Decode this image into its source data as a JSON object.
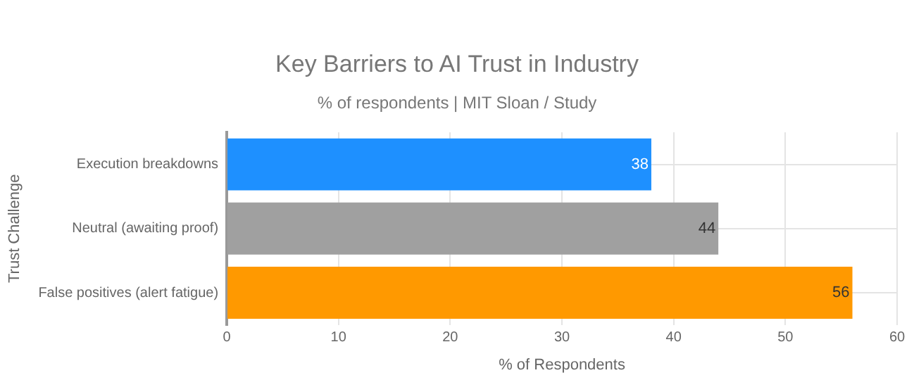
{
  "chart_data": {
    "type": "bar",
    "orientation": "horizontal",
    "title": "Key Barriers to AI Trust in Industry",
    "subtitle": "% of respondents | MIT Sloan / Study",
    "categories": [
      "Execution breakdowns",
      "Neutral (awaiting proof)",
      "False positives (alert fatigue)"
    ],
    "values": [
      38,
      44,
      56
    ],
    "colors": [
      "#1e90ff",
      "#a0a0a0",
      "#ff9900"
    ],
    "xlim": [
      0,
      60
    ],
    "xticks": [
      0,
      10,
      20,
      30,
      40,
      50,
      60
    ],
    "xlabel": "% of Respondents",
    "ylabel": "Trust Challenge",
    "grid": true,
    "legend": false,
    "data_labels": true
  }
}
